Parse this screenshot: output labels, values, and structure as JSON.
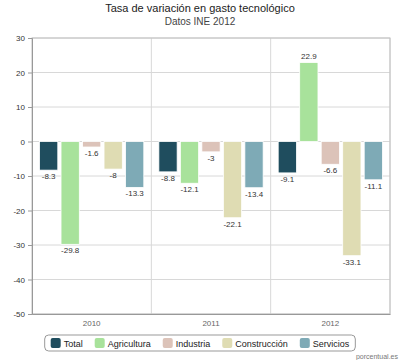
{
  "chart_data": {
    "type": "bar",
    "title": "Tasa de variación en gasto tecnológico",
    "subtitle": "Datos INE 2012",
    "categories": [
      "2010",
      "2011",
      "2012"
    ],
    "series": [
      {
        "name": "Total",
        "color": "#1f4d5e",
        "values": [
          -8.3,
          -8.8,
          -9.1
        ]
      },
      {
        "name": "Agricultura",
        "color": "#a8e29b",
        "values": [
          -29.8,
          -12.1,
          22.9
        ]
      },
      {
        "name": "Industria",
        "color": "#dcc3b9",
        "values": [
          -1.6,
          -3,
          -6.6
        ]
      },
      {
        "name": "Construcción",
        "color": "#dfdcb3",
        "values": [
          -8,
          -22.1,
          -33.1
        ]
      },
      {
        "name": "Servicios",
        "color": "#7eaab6",
        "values": [
          -13.3,
          -13.4,
          -11.1
        ]
      }
    ],
    "ylim": [
      -50,
      30
    ],
    "yticks": [
      -50,
      -40,
      -30,
      -20,
      -10,
      0,
      10,
      20,
      30
    ],
    "grid": true,
    "legend": "bottom",
    "data_labels": true,
    "annotations": [
      "porcentual.es"
    ]
  }
}
